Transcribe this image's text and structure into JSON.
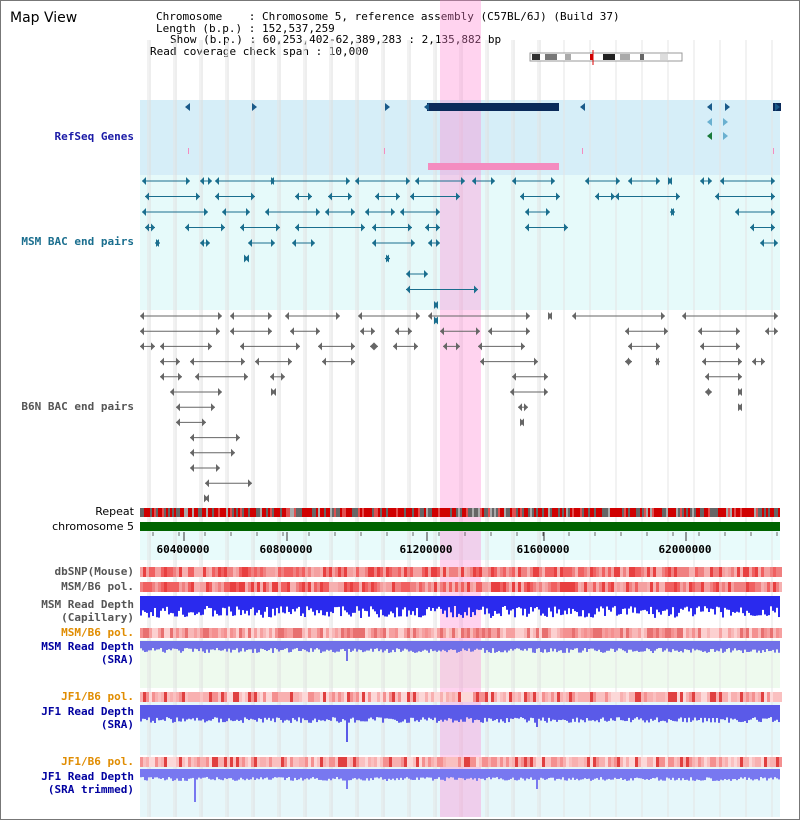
{
  "title": "Map View",
  "info": {
    "chromosome": "Chromosome    : Chromosome 5, reference assembly (C57BL/6J) (Build 37)",
    "length": "Length (b.p.) : 152,537,259",
    "show": "Show (b.p.) : 60,253,402-62,389,283 : 2,135,882 bp",
    "span": "Read coverage check span : 10,000"
  },
  "tracks": {
    "refseq": "RefSeq Genes",
    "msm_bac": "MSM BAC end pairs",
    "b6n_bac": "B6N BAC end pairs",
    "repeat": "Repeat",
    "chromosome": "chromosome 5",
    "dbsnp": "dbSNP(Mouse)",
    "msm_b6_pol_1": "MSM/B6 pol.",
    "msm_depth_cap_1": "MSM Read Depth",
    "msm_depth_cap_2": "(Capillary)",
    "msm_b6_pol_2": "MSM/B6 pol.",
    "msm_depth_sra_1": "MSM Read Depth",
    "msm_depth_sra_2": "(SRA)",
    "jf1_pol_1": "JF1/B6 pol.",
    "jf1_depth_sra_1": "JF1 Read Depth",
    "jf1_depth_sra_2": "(SRA)",
    "jf1_pol_2": "JF1/B6 pol.",
    "jf1_depth_trim_1": "JF1 Read Depth",
    "jf1_depth_trim_2": "(SRA trimmed)"
  },
  "ruler": {
    "ticks": [
      "60400000",
      "60800000",
      "61200000",
      "61600000",
      "62000000"
    ]
  },
  "colors": {
    "refseq_label": "#1a1aa6",
    "msm_label": "#1a6e8e",
    "b6n_label": "#555555",
    "orange_label": "#e08c00",
    "navy_label": "#0000a0",
    "chromosome_bar": "#006400",
    "highlight": "#ff80d0"
  }
}
